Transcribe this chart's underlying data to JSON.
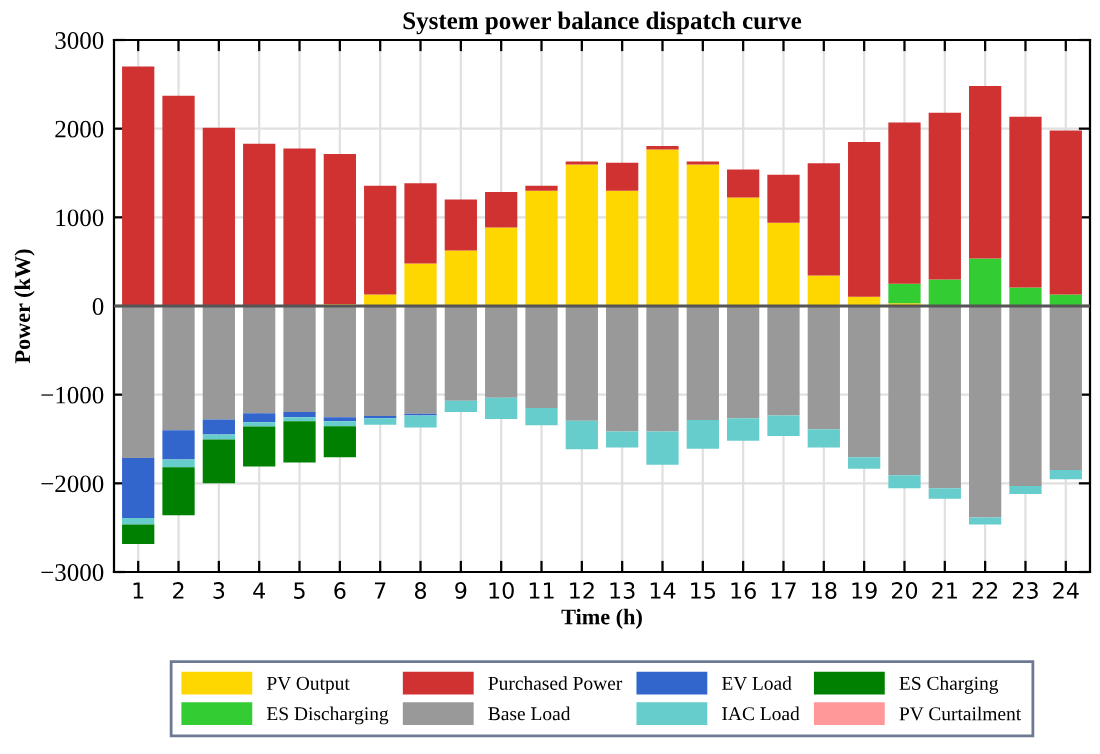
{
  "chart_data": {
    "type": "bar",
    "stacked": true,
    "title": "System power balance dispatch curve",
    "xlabel": "Time (h)",
    "ylabel": "Power (kW)",
    "categories": [
      "1",
      "2",
      "3",
      "4",
      "5",
      "6",
      "7",
      "8",
      "9",
      "10",
      "11",
      "12",
      "13",
      "14",
      "15",
      "16",
      "17",
      "18",
      "19",
      "20",
      "21",
      "22",
      "23",
      "24"
    ],
    "series": [
      {
        "name": "PV Output",
        "color": "#ffd700",
        "values": [
          0,
          0,
          0,
          0,
          0,
          20,
          130,
          480,
          625,
          885,
          1300,
          1595,
          1300,
          1765,
          1595,
          1225,
          940,
          345,
          105,
          30,
          0,
          0,
          0,
          0
        ]
      },
      {
        "name": "ES Discharging",
        "color": "#33cc33",
        "values": [
          0,
          0,
          0,
          0,
          0,
          0,
          0,
          0,
          0,
          0,
          0,
          0,
          0,
          0,
          0,
          0,
          0,
          0,
          0,
          220,
          300,
          535,
          210,
          130
        ]
      },
      {
        "name": "Purchased Power",
        "color": "#d03232",
        "values": [
          2700,
          2370,
          2010,
          1830,
          1775,
          1695,
          1225,
          905,
          575,
          400,
          55,
          35,
          315,
          40,
          35,
          315,
          540,
          1265,
          1745,
          1820,
          1880,
          1945,
          1925,
          1850
        ]
      },
      {
        "name": "Base Load",
        "color": "#999999",
        "values": [
          -1715,
          -1400,
          -1280,
          -1210,
          -1195,
          -1255,
          -1240,
          -1215,
          -1070,
          -1035,
          -1150,
          -1295,
          -1415,
          -1415,
          -1285,
          -1265,
          -1235,
          -1390,
          -1705,
          -1910,
          -2055,
          -2385,
          -2030,
          -1850
        ]
      },
      {
        "name": "EV Load",
        "color": "#3366cc",
        "values": [
          -675,
          -330,
          -170,
          -100,
          -60,
          -45,
          -25,
          -20,
          0,
          0,
          0,
          0,
          0,
          0,
          0,
          0,
          0,
          0,
          0,
          0,
          0,
          0,
          0,
          0
        ]
      },
      {
        "name": "IAC Load",
        "color": "#66cccc",
        "values": [
          -75,
          -90,
          -55,
          -50,
          -45,
          -55,
          -75,
          -135,
          -125,
          -240,
          -195,
          -320,
          -180,
          -375,
          -325,
          -255,
          -230,
          -205,
          -130,
          -145,
          -120,
          -80,
          -90,
          -105
        ]
      },
      {
        "name": "ES Charging",
        "color": "#008000",
        "values": [
          -220,
          -540,
          -495,
          -450,
          -465,
          -350,
          0,
          0,
          0,
          0,
          0,
          0,
          0,
          0,
          0,
          0,
          0,
          0,
          0,
          0,
          0,
          0,
          0,
          0
        ]
      },
      {
        "name": "PV Curtailment",
        "color": "#ff9999",
        "values": [
          0,
          0,
          0,
          0,
          0,
          0,
          0,
          0,
          0,
          0,
          0,
          0,
          0,
          0,
          0,
          0,
          0,
          0,
          0,
          0,
          0,
          0,
          0,
          0
        ]
      }
    ],
    "ylim": [
      -3000,
      3000
    ],
    "yticks": [
      {
        "value": -3000,
        "label": "−3000"
      },
      {
        "value": -2000,
        "label": "−2000"
      },
      {
        "value": -1000,
        "label": "−1000"
      },
      0,
      1000,
      2000,
      3000
    ],
    "grid": true,
    "legend": "bottom"
  }
}
